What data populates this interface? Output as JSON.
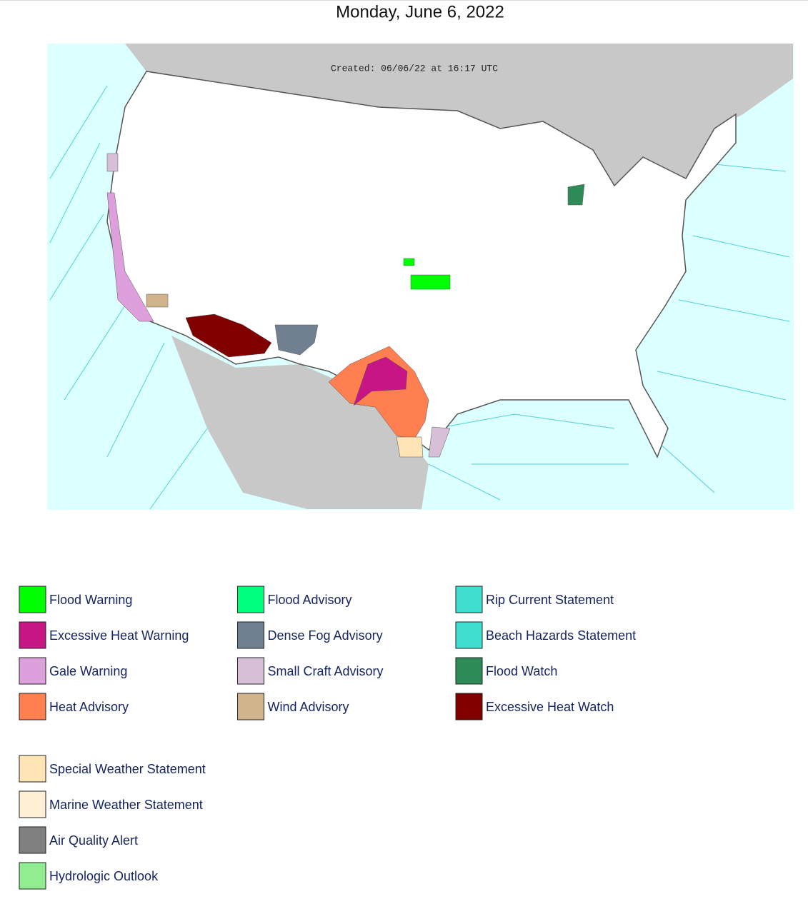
{
  "title": "Monday, June 6, 2022",
  "map": {
    "created": "Created: 06/06/22 at 16:17 UTC"
  },
  "legend": {
    "columns": [
      [
        {
          "label": "Flood Warning",
          "color": "#00ff00"
        },
        {
          "label": "Excessive Heat Warning",
          "color": "#c71585"
        },
        {
          "label": "Gale Warning",
          "color": "#dda0dd"
        },
        {
          "label": "Heat Advisory",
          "color": "#ff7f50"
        }
      ],
      [
        {
          "label": "Flood Advisory",
          "color": "#00ff7f"
        },
        {
          "label": "Dense Fog Advisory",
          "color": "#708090"
        },
        {
          "label": "Small Craft Advisory",
          "color": "#d8bfd8"
        },
        {
          "label": "Wind Advisory",
          "color": "#d2b48c"
        }
      ],
      [
        {
          "label": "Rip Current Statement",
          "color": "#40e0d0"
        },
        {
          "label": "Beach Hazards Statement",
          "color": "#40e0d0"
        },
        {
          "label": "Flood Watch",
          "color": "#2e8b57"
        },
        {
          "label": "Excessive Heat Watch",
          "color": "#800000"
        }
      ]
    ],
    "extra": [
      {
        "label": "Special Weather Statement",
        "color": "#ffe4b5"
      },
      {
        "label": "Marine Weather Statement",
        "color": "#ffefd5"
      },
      {
        "label": "Air Quality Alert",
        "color": "#808080"
      },
      {
        "label": "Hydrologic Outlook",
        "color": "#90ee90"
      }
    ]
  }
}
